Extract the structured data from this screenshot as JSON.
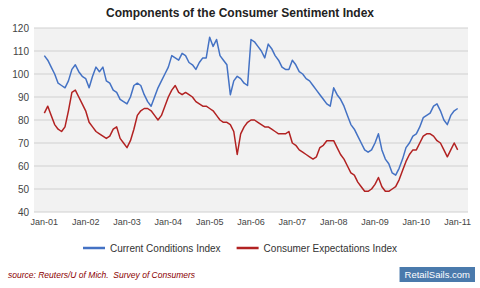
{
  "chart_data": {
    "type": "line",
    "title": "Components of the Consumer Sentiment Index",
    "categories": [
      "Jan-01",
      null,
      null,
      null,
      null,
      null,
      null,
      null,
      null,
      null,
      null,
      null,
      "Jan-02",
      null,
      null,
      null,
      null,
      null,
      null,
      null,
      null,
      null,
      null,
      null,
      "Jan-03",
      null,
      null,
      null,
      null,
      null,
      null,
      null,
      null,
      null,
      null,
      null,
      "Jan-04",
      null,
      null,
      null,
      null,
      null,
      null,
      null,
      null,
      null,
      null,
      null,
      "Jan-05",
      null,
      null,
      null,
      null,
      null,
      null,
      null,
      null,
      null,
      null,
      null,
      "Jan-06",
      null,
      null,
      null,
      null,
      null,
      null,
      null,
      null,
      null,
      null,
      null,
      "Jan-07",
      null,
      null,
      null,
      null,
      null,
      null,
      null,
      null,
      null,
      null,
      null,
      "Jan-08",
      null,
      null,
      null,
      null,
      null,
      null,
      null,
      null,
      null,
      null,
      null,
      "Jan-09",
      null,
      null,
      null,
      null,
      null,
      null,
      null,
      null,
      null,
      null,
      null,
      "Jan-10",
      null,
      null,
      null,
      null,
      null,
      null,
      null,
      null,
      null,
      null,
      null,
      "Jan-11"
    ],
    "series": [
      {
        "name": "Current Conditions Index",
        "color": "#4472C4",
        "values": [
          108,
          106,
          103,
          100,
          96,
          95,
          94,
          97,
          102,
          104,
          101,
          99,
          98,
          94,
          99,
          103,
          101,
          103,
          97,
          96,
          93,
          92,
          89,
          88,
          87,
          90,
          95,
          96,
          95,
          91,
          88,
          86,
          90,
          94,
          97,
          100,
          103,
          108,
          107,
          106,
          109,
          108,
          105,
          104,
          102,
          105,
          107,
          107,
          116,
          112,
          115,
          108,
          106,
          104,
          91,
          97,
          99,
          98,
          96,
          95,
          115,
          114,
          112,
          110,
          107,
          113,
          111,
          108,
          106,
          103,
          102,
          102,
          106,
          104,
          101,
          100,
          98,
          97,
          95,
          93,
          91,
          89,
          87,
          86,
          94,
          91,
          89,
          86,
          82,
          78,
          76,
          73,
          70,
          67,
          66,
          67,
          70,
          74,
          67,
          63,
          61,
          57,
          56,
          59,
          63,
          68,
          70,
          73,
          74,
          77,
          81,
          82,
          83,
          86,
          87,
          84,
          80,
          78,
          82,
          84,
          85
        ]
      },
      {
        "name": "Consumer Expectations Index",
        "color": "#B22222",
        "values": [
          83,
          86,
          82,
          78,
          76,
          75,
          77,
          84,
          92,
          93,
          90,
          87,
          84,
          79,
          77,
          75,
          74,
          73,
          72,
          73,
          76,
          77,
          72,
          70,
          68,
          71,
          76,
          82,
          84,
          85,
          85,
          84,
          82,
          80,
          82,
          86,
          90,
          93,
          95,
          92,
          91,
          92,
          91,
          90,
          88,
          87,
          86,
          86,
          85,
          84,
          82,
          80,
          79,
          79,
          78,
          75,
          65,
          74,
          77,
          79,
          80,
          80,
          79,
          78,
          77,
          77,
          76,
          75,
          74,
          74,
          74,
          75,
          70,
          69,
          67,
          66,
          65,
          64,
          63,
          64,
          68,
          69,
          71,
          71,
          71,
          68,
          65,
          63,
          60,
          57,
          56,
          53,
          51,
          49,
          49,
          50,
          52,
          55,
          51,
          49,
          49,
          50,
          51,
          54,
          58,
          62,
          65,
          67,
          67,
          70,
          73,
          74,
          74,
          73,
          71,
          70,
          67,
          64,
          67,
          70,
          67
        ]
      }
    ],
    "ylim": [
      40,
      120
    ],
    "yticks": [
      40,
      50,
      60,
      70,
      80,
      90,
      100,
      110,
      120
    ],
    "grid": true,
    "legend": "bottom",
    "annotations": [
      "source: Reuters/U of Mich.  Survey of Consumers",
      "RetailSails.com"
    ]
  }
}
